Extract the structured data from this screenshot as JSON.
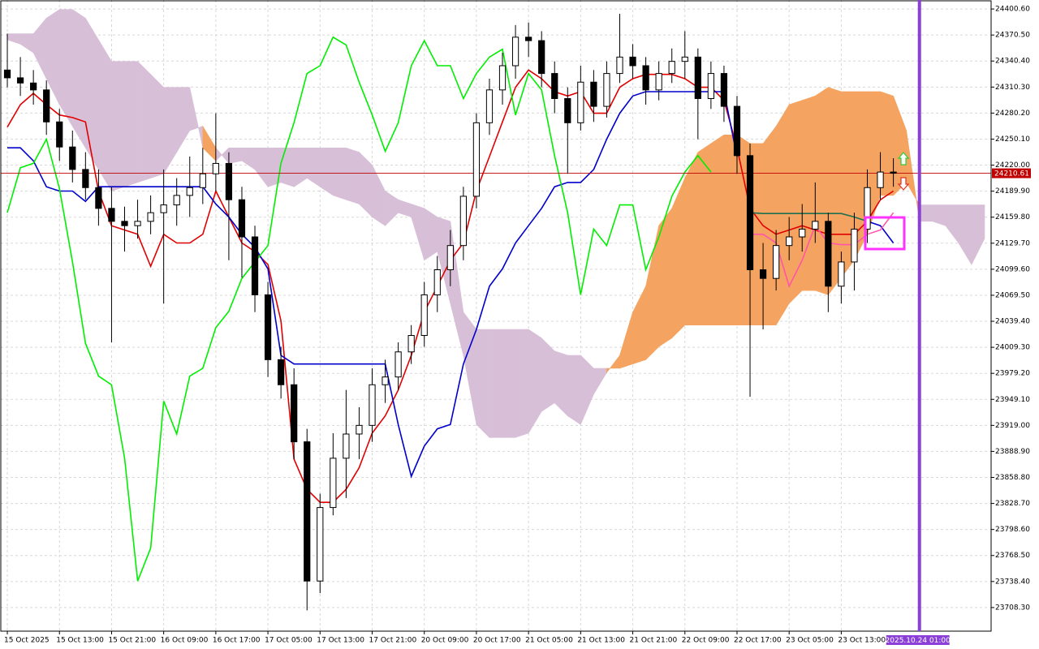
{
  "chart_data": {
    "type": "candlestick",
    "categories": [
      "15 Oct 2025",
      null,
      null,
      null,
      "15 Oct 13:00",
      null,
      null,
      null,
      "15 Oct 21:00",
      null,
      null,
      null,
      "16 Oct 09:00",
      null,
      null,
      null,
      "16 Oct 17:00",
      null,
      null,
      null,
      "17 Oct 05:00",
      null,
      null,
      null,
      "17 Oct 13:00",
      null,
      null,
      null,
      "17 Oct 21:00",
      null,
      null,
      null,
      "20 Oct 09:00",
      null,
      null,
      null,
      "20 Oct 17:00",
      null,
      null,
      null,
      "21 Oct 05:00",
      null,
      null,
      null,
      "21 Oct 13:00",
      null,
      null,
      null,
      "21 Oct 21:00",
      null,
      null,
      null,
      "22 Oct 09:00",
      null,
      null,
      null,
      "22 Oct 17:00",
      null,
      null,
      null,
      "23 Oct 05:00",
      null,
      null,
      null,
      "23 Oct 13:00",
      null,
      null,
      null,
      null,
      null,
      "2025.10.24 01:00",
      null,
      null,
      null,
      null,
      null
    ],
    "open": [
      24330,
      24321,
      24315,
      24307,
      24270,
      24241,
      24215,
      24194,
      24170,
      24155,
      24150,
      24155,
      24165,
      24174,
      24185,
      24194,
      24210,
      24222,
      24180,
      24137,
      24070,
      23995,
      23966,
      23900,
      23739,
      23824,
      23881,
      23909,
      23919,
      23966,
      23975,
      24004,
      24023,
      24070,
      24099,
      24127,
      24184,
      24269,
      24307,
      24335,
      24368,
      24364,
      24326,
      24297,
      24269,
      24316,
      24288,
      24326,
      24345,
      24335,
      24307,
      24326,
      24340,
      24345,
      24297,
      24326,
      24288,
      24231,
      24099,
      24089,
      24127,
      24137,
      24146,
      24155,
      24080,
      24108,
      24146,
      24194,
      24212,
      null,
      null,
      null,
      null,
      null,
      null,
      null
    ],
    "high": [
      24372,
      24345,
      24330,
      24318,
      24285,
      24260,
      24235,
      24215,
      24195,
      24172,
      24180,
      24185,
      24215,
      24205,
      24230,
      24240,
      24280,
      24235,
      24195,
      24150,
      24085,
      24010,
      23985,
      23915,
      23840,
      23910,
      23960,
      23940,
      23985,
      23995,
      24015,
      24035,
      24085,
      24115,
      24145,
      24195,
      24280,
      24320,
      24350,
      24382,
      24385,
      24375,
      24340,
      24310,
      24335,
      24330,
      24340,
      24395,
      24360,
      24345,
      24340,
      24355,
      24375,
      24355,
      24340,
      24335,
      24300,
      24245,
      24130,
      24145,
      24160,
      24175,
      24200,
      24165,
      24120,
      24165,
      24215,
      24235,
      24228,
      null,
      null,
      null,
      null,
      null,
      null,
      null
    ],
    "low": [
      24310,
      24300,
      24290,
      24255,
      24225,
      24200,
      24180,
      24150,
      24015,
      24120,
      24135,
      24140,
      24060,
      24150,
      24160,
      24175,
      24190,
      24110,
      24090,
      24050,
      23975,
      23950,
      23880,
      23705,
      23725,
      23815,
      23835,
      23880,
      23900,
      23945,
      23960,
      23990,
      24010,
      24050,
      24080,
      24110,
      24170,
      24255,
      24290,
      24320,
      24345,
      24310,
      24280,
      24210,
      24260,
      24270,
      24275,
      24315,
      24320,
      24290,
      24295,
      24315,
      24320,
      24250,
      24285,
      24270,
      24210,
      23952,
      24030,
      24075,
      24110,
      24120,
      24130,
      24050,
      24060,
      24075,
      24130,
      24180,
      24195,
      null,
      null,
      null,
      null,
      null,
      null,
      null
    ],
    "close": [
      24321,
      24315,
      24307,
      24270,
      24241,
      24215,
      24194,
      24170,
      24155,
      24150,
      24155,
      24165,
      24174,
      24185,
      24194,
      24210,
      24222,
      24180,
      24137,
      24070,
      23995,
      23966,
      23900,
      23739,
      23824,
      23881,
      23909,
      23919,
      23966,
      23975,
      24004,
      24023,
      24070,
      24099,
      24127,
      24184,
      24269,
      24307,
      24335,
      24368,
      24364,
      24326,
      24297,
      24269,
      24316,
      24288,
      24326,
      24345,
      24335,
      24307,
      24326,
      24340,
      24345,
      24297,
      24326,
      24288,
      24231,
      24099,
      24089,
      24127,
      24137,
      24146,
      24155,
      24080,
      24108,
      24146,
      24194,
      24212,
      24210.61,
      null,
      null,
      null,
      null,
      null,
      null,
      null
    ],
    "up_color": "#ffffff",
    "down_color": "#000000",
    "candle_border": "#000000",
    "cloud": {
      "span_a": [
        24365,
        24360,
        24350,
        24320,
        24290,
        24265,
        24240,
        24215,
        24190,
        24195,
        24200,
        24205,
        24210,
        24235,
        24260,
        24265,
        24240,
        24222,
        24225,
        24215,
        24195,
        24200,
        24195,
        24205,
        24195,
        24185,
        24180,
        24175,
        24160,
        24150,
        24165,
        24160,
        24110,
        24120,
        24060,
        24000,
        23920,
        23905,
        23905,
        23905,
        23910,
        23935,
        23945,
        23930,
        23920,
        23955,
        23980,
        24000,
        24050,
        24080,
        24150,
        24170,
        24205,
        24235,
        24245,
        24255,
        24255,
        24245,
        24245,
        24265,
        24290,
        24295,
        24300,
        24310,
        24305,
        24305,
        24305,
        24305,
        24300,
        24260,
        24155,
        24155,
        24150,
        24130,
        24105,
        24135
      ],
      "span_b": [
        24372,
        24372,
        24372,
        24390,
        24400,
        24400,
        24390,
        24365,
        24340,
        24340,
        24340,
        24325,
        24310,
        24310,
        24310,
        24240,
        24225,
        24240,
        24240,
        24240,
        24240,
        24240,
        24240,
        24240,
        24240,
        24240,
        24240,
        24235,
        24220,
        24190,
        24180,
        24175,
        24170,
        24160,
        24155,
        24050,
        24030,
        24030,
        24030,
        24030,
        24030,
        24020,
        24005,
        24000,
        24000,
        23985,
        23985,
        23985,
        23990,
        23995,
        24010,
        24020,
        24035,
        24035,
        24035,
        24035,
        24035,
        24035,
        24035,
        24035,
        24060,
        24075,
        24075,
        24070,
        24090,
        24110,
        24140,
        24185,
        24185,
        24200,
        24174,
        24174,
        24174,
        24174,
        24174,
        24174
      ],
      "bull_color": "#f4a460",
      "bear_color": "#d8bfd8"
    },
    "lines": [
      {
        "color": "#e00000",
        "values": [
          24264,
          24290,
          24303,
          24290,
          24278,
          24275,
          24270,
          24190,
          24150,
          24145,
          24140,
          24103,
          24140,
          24130,
          24130,
          24140,
          24190,
          24160,
          24130,
          24120,
          24105,
          24040,
          23880,
          23845,
          23830,
          23830,
          23845,
          23870,
          23910,
          23930,
          23960,
          24000,
          24050,
          24080,
          24110,
          24130,
          24190,
          24230,
          24270,
          24310,
          24330,
          24320,
          24305,
          24300,
          24305,
          24280,
          24280,
          24310,
          24320,
          24325,
          24325,
          24325,
          24320,
          24310,
          24310,
          24295,
          24240,
          24170,
          24150,
          24140,
          24145,
          24150,
          24145,
          24140,
          24140,
          24140,
          24155,
          24180,
          24190,
          null,
          null,
          null,
          null,
          null,
          null,
          null
        ]
      },
      {
        "color": "#0000cc",
        "values": [
          24240,
          24240,
          24225,
          24195,
          24190,
          24190,
          24178,
          24195,
          24195,
          24195,
          24195,
          24195,
          24195,
          24195,
          24195,
          24195,
          24175,
          24160,
          24140,
          24125,
          24100,
          24000,
          23990,
          23990,
          23990,
          23990,
          23990,
          23990,
          23990,
          23990,
          23920,
          23860,
          23895,
          23915,
          23920,
          23990,
          24030,
          24080,
          24100,
          24130,
          24150,
          24170,
          24195,
          24200,
          24200,
          24215,
          24250,
          24280,
          24300,
          24305,
          24305,
          24305,
          24305,
          24305,
          24305,
          24305,
          24230,
          null,
          null,
          null,
          null,
          null,
          null,
          null,
          null,
          null,
          24155,
          24150,
          24130,
          null,
          null,
          null,
          null,
          null,
          null,
          null
        ]
      },
      {
        "color": "#1f6f50",
        "values": [
          null,
          null,
          null,
          null,
          null,
          null,
          null,
          null,
          null,
          null,
          null,
          null,
          null,
          null,
          null,
          null,
          null,
          null,
          null,
          null,
          null,
          null,
          null,
          null,
          null,
          null,
          null,
          null,
          null,
          null,
          null,
          null,
          null,
          null,
          null,
          null,
          null,
          null,
          null,
          null,
          null,
          null,
          null,
          null,
          null,
          null,
          null,
          null,
          null,
          null,
          null,
          null,
          null,
          null,
          null,
          null,
          null,
          24165,
          24164,
          24164,
          24164,
          24164,
          24164,
          24164,
          24164,
          24160,
          24155,
          null,
          null,
          null,
          null,
          null,
          null,
          null,
          null,
          null
        ]
      },
      {
        "color": "#ff55aa",
        "values": [
          null,
          null,
          null,
          null,
          null,
          null,
          null,
          null,
          null,
          null,
          null,
          null,
          null,
          null,
          null,
          null,
          null,
          null,
          null,
          null,
          null,
          null,
          null,
          null,
          null,
          null,
          null,
          null,
          null,
          null,
          null,
          null,
          null,
          null,
          null,
          null,
          null,
          null,
          null,
          null,
          null,
          null,
          null,
          null,
          null,
          null,
          null,
          null,
          null,
          null,
          null,
          null,
          null,
          null,
          null,
          null,
          null,
          24140,
          24140,
          24130,
          24080,
          24110,
          24150,
          24130,
          24128,
          24128,
          24140,
          24145,
          24165,
          null,
          null,
          null,
          null,
          null,
          null,
          null
        ]
      },
      {
        "color": "#00ee00",
        "values": [
          24165,
          24217,
          24222,
          24250,
          24193,
          24108,
          24014,
          23976,
          23966,
          23881,
          23739,
          23777,
          23947,
          23909,
          23976,
          23985,
          24032,
          24051,
          24089,
          24108,
          24127,
          24222,
          24269,
          24326,
          24335,
          24368,
          24359,
          24316,
          24278,
          24236,
          24269,
          24335,
          24364,
          24335,
          24335,
          24297,
          24326,
          24345,
          24354,
          24278,
          24326,
          24307,
          24231,
          24165,
          24070,
          24146,
          24127,
          24174,
          24174,
          24099,
          24137,
          24184,
          24212,
          24231,
          24212,
          null,
          null,
          null,
          null,
          null,
          null,
          null,
          null,
          null,
          null,
          null,
          null,
          null,
          null,
          null,
          null,
          null,
          null,
          null,
          null,
          null
        ]
      }
    ],
    "last_price": 24210.61,
    "last_price_color": "#c00000",
    "marker_color": "#8a3fd8",
    "ylim": [
      23681,
      24411
    ],
    "yticks": [
      {
        "value": 24400.6,
        "label": "24400.60"
      },
      {
        "value": 24370.5,
        "label": "24370.50"
      },
      {
        "value": 24340.4,
        "label": "24340.40"
      },
      {
        "value": 24310.3,
        "label": "24310.30"
      },
      {
        "value": 24280.2,
        "label": "24280.20"
      },
      {
        "value": 24250.1,
        "label": "24250.10"
      },
      {
        "value": 24220,
        "label": "24220.00"
      },
      {
        "value": 24189.9,
        "label": "24189.90"
      },
      {
        "value": 24159.8,
        "label": "24159.80"
      },
      {
        "value": 24129.7,
        "label": "24129.70"
      },
      {
        "value": 24099.6,
        "label": "24099.60"
      },
      {
        "value": 24069.5,
        "label": "24069.50"
      },
      {
        "value": 24039.4,
        "label": "24039.40"
      },
      {
        "value": 24009.3,
        "label": "24009.30"
      },
      {
        "value": 23979.2,
        "label": "23979.20"
      },
      {
        "value": 23949.1,
        "label": "23949.10"
      },
      {
        "value": 23919,
        "label": "23919.00"
      },
      {
        "value": 23888.9,
        "label": "23888.90"
      },
      {
        "value": 23858.8,
        "label": "23858.80"
      },
      {
        "value": 23828.7,
        "label": "23828.70"
      },
      {
        "value": 23798.6,
        "label": "23798.60"
      },
      {
        "value": 23768.5,
        "label": "23768.50"
      },
      {
        "value": 23738.4,
        "label": "23738.40"
      },
      {
        "value": 23708.3,
        "label": "23708.30"
      }
    ],
    "grid": true
  }
}
